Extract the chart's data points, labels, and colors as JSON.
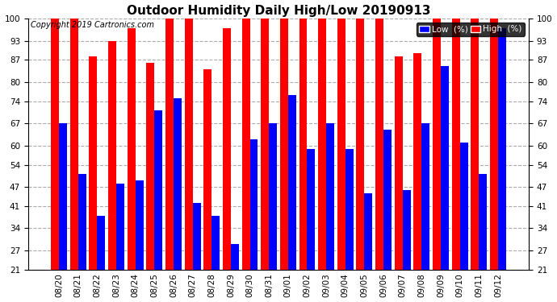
{
  "title": "Outdoor Humidity Daily High/Low 20190913",
  "copyright": "Copyright 2019 Cartronics.com",
  "legend_low": "Low  (%)",
  "legend_high": "High  (%)",
  "bar_color_low": "#0000ff",
  "bar_color_high": "#ff0000",
  "background_color": "#ffffff",
  "ylim": [
    21,
    100
  ],
  "yticks": [
    21,
    27,
    34,
    41,
    47,
    54,
    60,
    67,
    74,
    80,
    87,
    93,
    100
  ],
  "grid_color": "#aaaaaa",
  "dates": [
    "08/20",
    "08/21",
    "08/22",
    "08/23",
    "08/24",
    "08/25",
    "08/26",
    "08/27",
    "08/28",
    "08/29",
    "08/30",
    "08/31",
    "09/01",
    "09/02",
    "09/03",
    "09/04",
    "09/05",
    "09/06",
    "09/07",
    "09/08",
    "09/09",
    "09/10",
    "09/11",
    "09/12"
  ],
  "high_values": [
    100,
    100,
    88,
    93,
    97,
    86,
    100,
    100,
    84,
    97,
    100,
    100,
    100,
    100,
    100,
    100,
    100,
    100,
    88,
    89,
    100,
    100,
    100,
    100
  ],
  "low_values": [
    67,
    51,
    38,
    48,
    49,
    71,
    75,
    42,
    38,
    29,
    62,
    67,
    76,
    59,
    67,
    59,
    45,
    65,
    46,
    67,
    85,
    61,
    51,
    97
  ],
  "bar_width": 0.42,
  "title_fontsize": 11,
  "tick_fontsize": 7.5,
  "copyright_fontsize": 7
}
